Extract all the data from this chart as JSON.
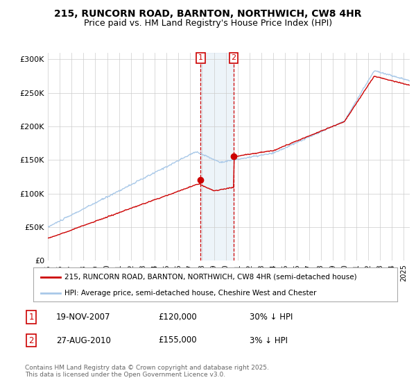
{
  "title": "215, RUNCORN ROAD, BARNTON, NORTHWICH, CW8 4HR",
  "subtitle": "Price paid vs. HM Land Registry's House Price Index (HPI)",
  "legend_line1": "215, RUNCORN ROAD, BARNTON, NORTHWICH, CW8 4HR (semi-detached house)",
  "legend_line2": "HPI: Average price, semi-detached house, Cheshire West and Chester",
  "footer": "Contains HM Land Registry data © Crown copyright and database right 2025.\nThis data is licensed under the Open Government Licence v3.0.",
  "hpi_color": "#a8c8e8",
  "price_color": "#cc0000",
  "marker_color": "#cc0000",
  "purchase1": {
    "date": "19-NOV-2007",
    "price": 120000,
    "label": "1",
    "pct": "30% ↓ HPI",
    "x_year": 2007.88
  },
  "purchase2": {
    "date": "27-AUG-2010",
    "price": 155000,
    "label": "2",
    "pct": "3% ↓ HPI",
    "x_year": 2010.65
  },
  "ylim": [
    0,
    310000
  ],
  "xlim_start": 1995,
  "xlim_end": 2025.5,
  "yticks": [
    0,
    50000,
    100000,
    150000,
    200000,
    250000,
    300000
  ],
  "ytick_labels": [
    "£0",
    "£50K",
    "£100K",
    "£150K",
    "£200K",
    "£250K",
    "£300K"
  ],
  "xtick_years": [
    1995,
    1996,
    1997,
    1998,
    1999,
    2000,
    2001,
    2002,
    2003,
    2004,
    2005,
    2006,
    2007,
    2008,
    2009,
    2010,
    2011,
    2012,
    2013,
    2014,
    2015,
    2016,
    2017,
    2018,
    2019,
    2020,
    2021,
    2022,
    2023,
    2024,
    2025
  ],
  "bg_color": "#ffffff",
  "grid_color": "#cccccc",
  "shade_color": "#cce0f0",
  "box_color": "#cc0000",
  "title_fontsize": 10,
  "subtitle_fontsize": 9
}
